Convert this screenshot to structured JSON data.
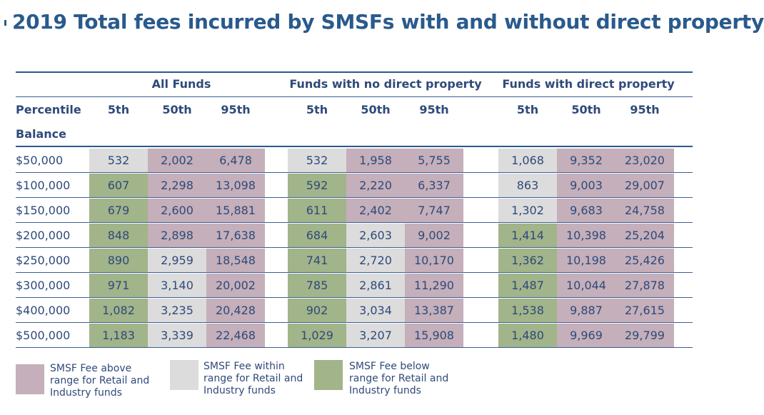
{
  "chart_data": {
    "type": "table",
    "title": "2019 Total fees incurred by SMSFs with and without direct property",
    "row_header_label": "Percentile",
    "balance_label": "Balance",
    "groups": [
      {
        "name": "All Funds",
        "columns": [
          "5th",
          "50th",
          "95th"
        ]
      },
      {
        "name": "Funds with no direct property",
        "columns": [
          "5th",
          "50th",
          "95th"
        ]
      },
      {
        "name": "Funds with direct property",
        "columns": [
          "5th",
          "50th",
          "95th"
        ]
      }
    ],
    "rows": [
      {
        "balance": "$50,000",
        "values": [
          "532",
          "2,002",
          "6,478",
          "532",
          "1,958",
          "5,755",
          "1,068",
          "9,352",
          "23,020"
        ],
        "category": [
          "within",
          "above",
          "above",
          "within",
          "above",
          "above",
          "within",
          "above",
          "above"
        ]
      },
      {
        "balance": "$100,000",
        "values": [
          "607",
          "2,298",
          "13,098",
          "592",
          "2,220",
          "6,337",
          "863",
          "9,003",
          "29,007"
        ],
        "category": [
          "below",
          "above",
          "above",
          "below",
          "above",
          "above",
          "within",
          "above",
          "above"
        ]
      },
      {
        "balance": "$150,000",
        "values": [
          "679",
          "2,600",
          "15,881",
          "611",
          "2,402",
          "7,747",
          "1,302",
          "9,683",
          "24,758"
        ],
        "category": [
          "below",
          "above",
          "above",
          "below",
          "above",
          "above",
          "within",
          "above",
          "above"
        ]
      },
      {
        "balance": "$200,000",
        "values": [
          "848",
          "2,898",
          "17,638",
          "684",
          "2,603",
          "9,002",
          "1,414",
          "10,398",
          "25,204"
        ],
        "category": [
          "below",
          "above",
          "above",
          "below",
          "within",
          "above",
          "below",
          "above",
          "above"
        ]
      },
      {
        "balance": "$250,000",
        "values": [
          "890",
          "2,959",
          "18,548",
          "741",
          "2,720",
          "10,170",
          "1,362",
          "10,198",
          "25,426"
        ],
        "category": [
          "below",
          "within",
          "above",
          "below",
          "within",
          "above",
          "below",
          "above",
          "above"
        ]
      },
      {
        "balance": "$300,000",
        "values": [
          "971",
          "3,140",
          "20,002",
          "785",
          "2,861",
          "11,290",
          "1,487",
          "10,044",
          "27,878"
        ],
        "category": [
          "below",
          "within",
          "above",
          "below",
          "within",
          "above",
          "below",
          "above",
          "above"
        ]
      },
      {
        "balance": "$400,000",
        "values": [
          "1,082",
          "3,235",
          "20,428",
          "902",
          "3,034",
          "13,387",
          "1,538",
          "9,887",
          "27,615"
        ],
        "category": [
          "below",
          "within",
          "above",
          "below",
          "within",
          "above",
          "below",
          "above",
          "above"
        ]
      },
      {
        "balance": "$500,000",
        "values": [
          "1,183",
          "3,339",
          "22,468",
          "1,029",
          "3,207",
          "15,908",
          "1,480",
          "9,969",
          "29,799"
        ],
        "category": [
          "below",
          "within",
          "above",
          "below",
          "within",
          "above",
          "below",
          "above",
          "above"
        ]
      }
    ],
    "legend": [
      {
        "key": "above",
        "label": "SMSF Fee above range for Retail and Industry funds",
        "color": "#c4afba"
      },
      {
        "key": "within",
        "label": "SMSF Fee within range for Retail and Industry funds",
        "color": "#dcdcdc"
      },
      {
        "key": "below",
        "label": "SMSF Fee below range for Retail and Industry funds",
        "color": "#a2b489"
      }
    ]
  }
}
